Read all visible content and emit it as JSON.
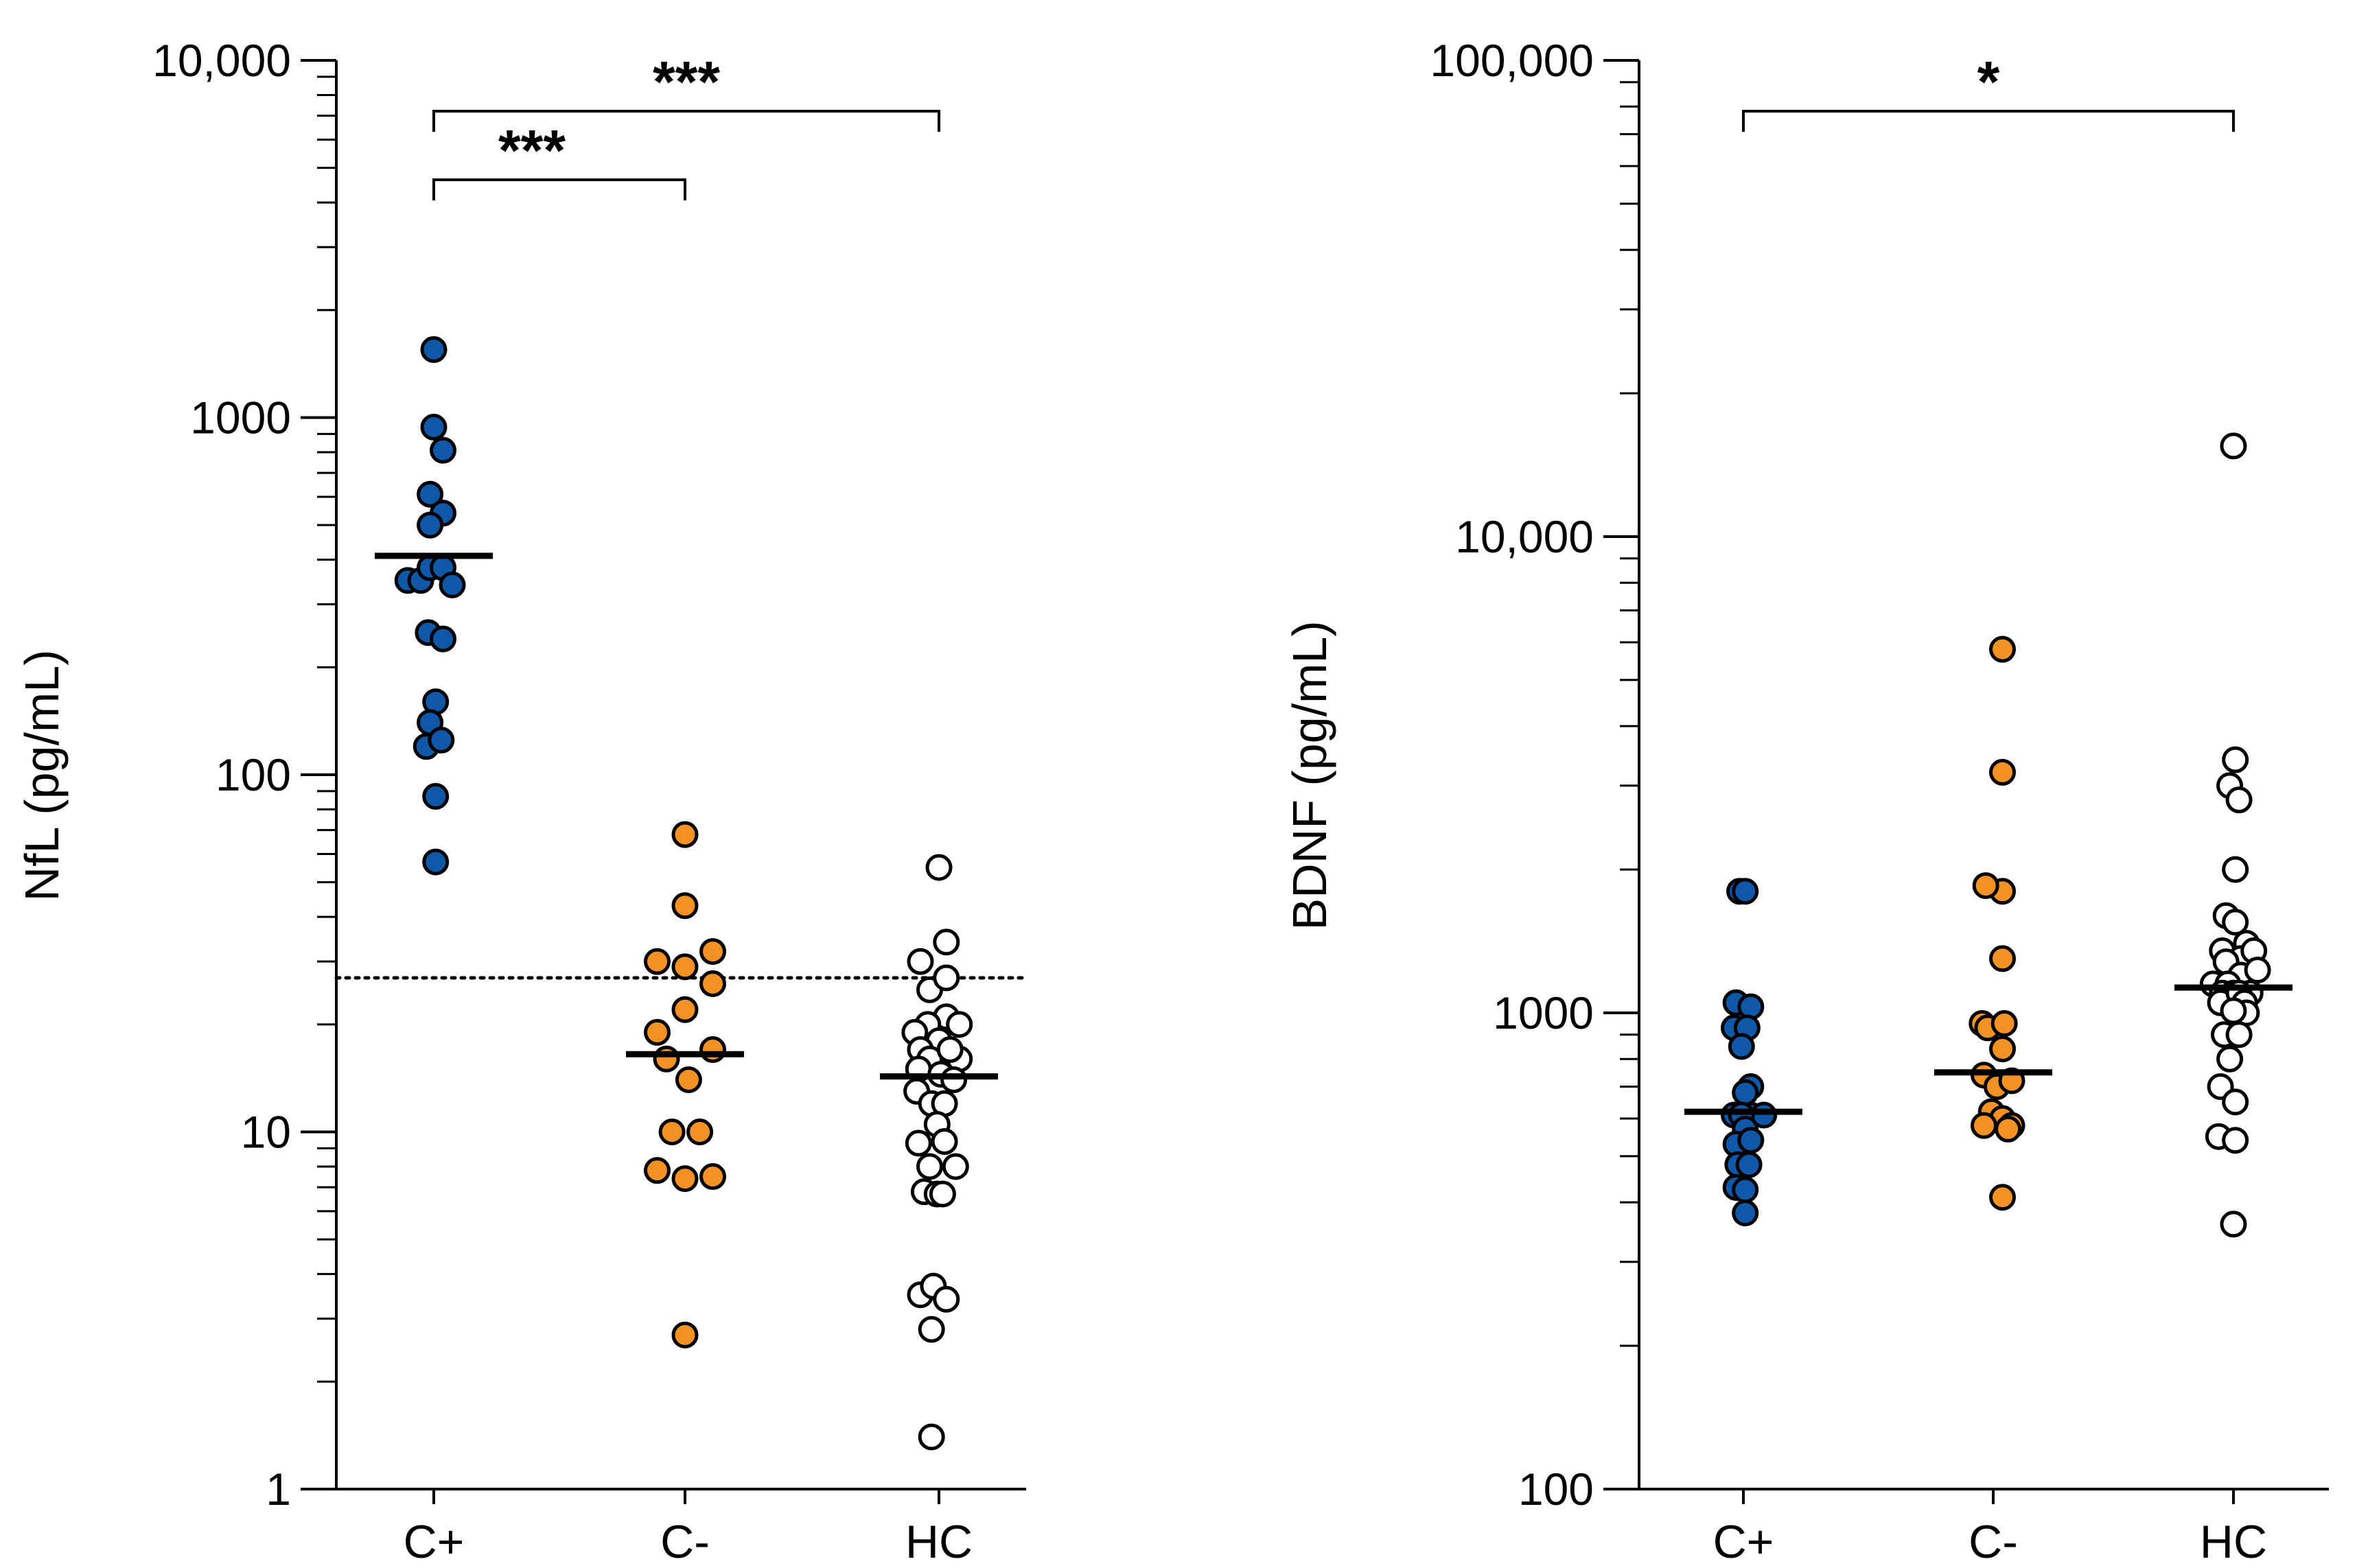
{
  "chart_data": [
    {
      "type": "scatter",
      "scale": "log",
      "ylabel": "NfL (pg/mL)",
      "ylim": [
        1,
        10000
      ],
      "yticks": [
        {
          "value": 1,
          "label": "1"
        },
        {
          "value": 10,
          "label": "10"
        },
        {
          "value": 100,
          "label": "100"
        },
        {
          "value": 1000,
          "label": "1000"
        },
        {
          "value": 10000,
          "label": "10,000"
        }
      ],
      "categories": [
        "C+",
        "C-",
        "HC"
      ],
      "reference_line": {
        "value": 27,
        "style": "dotted"
      },
      "series": [
        {
          "name": "C+",
          "color": "#0F58A8",
          "points": [
            [
              0,
              1550
            ],
            [
              0,
              940
            ],
            [
              0.05,
              810
            ],
            [
              -0.02,
              610
            ],
            [
              0.05,
              540
            ],
            [
              -0.02,
              500
            ],
            [
              -0.14,
              350
            ],
            [
              -0.07,
              350
            ],
            [
              -0.02,
              380
            ],
            [
              0.05,
              380
            ],
            [
              0.1,
              340
            ],
            [
              -0.03,
              250
            ],
            [
              0.05,
              240
            ],
            [
              0.01,
              160
            ],
            [
              -0.02,
              140
            ],
            [
              -0.04,
              120
            ],
            [
              0.04,
              125
            ],
            [
              0.01,
              87
            ],
            [
              0.01,
              57
            ]
          ],
          "median": 410
        },
        {
          "name": "C-",
          "color": "#F39224",
          "points": [
            [
              0,
              68
            ],
            [
              0,
              43
            ],
            [
              -0.15,
              30
            ],
            [
              0,
              29
            ],
            [
              0.15,
              32
            ],
            [
              0,
              22
            ],
            [
              0.15,
              26
            ],
            [
              -0.15,
              19
            ],
            [
              -0.1,
              16
            ],
            [
              0.02,
              14
            ],
            [
              0.15,
              17
            ],
            [
              -0.07,
              10
            ],
            [
              0.08,
              10
            ],
            [
              -0.15,
              7.8
            ],
            [
              0,
              7.4
            ],
            [
              0.15,
              7.5
            ],
            [
              0,
              2.7
            ]
          ],
          "median": 16.5
        },
        {
          "name": "HC",
          "color": "#FFFFFF",
          "points": [
            [
              0,
              55
            ],
            [
              0.04,
              34
            ],
            [
              -0.1,
              30
            ],
            [
              -0.05,
              25
            ],
            [
              0.04,
              27
            ],
            [
              0.04,
              21
            ],
            [
              -0.06,
              20
            ],
            [
              0.11,
              20
            ],
            [
              -0.13,
              19
            ],
            [
              0,
              18
            ],
            [
              0.11,
              16
            ],
            [
              -0.1,
              17
            ],
            [
              -0.05,
              16
            ],
            [
              0.06,
              17
            ],
            [
              -0.11,
              15
            ],
            [
              0.01,
              14.5
            ],
            [
              0.08,
              14
            ],
            [
              -0.12,
              13
            ],
            [
              -0.04,
              12
            ],
            [
              0.03,
              12
            ],
            [
              -0.01,
              10.5
            ],
            [
              -0.11,
              9.3
            ],
            [
              0.03,
              9.4
            ],
            [
              -0.05,
              8
            ],
            [
              0.09,
              8
            ],
            [
              -0.08,
              6.8
            ],
            [
              -0.01,
              6.7
            ],
            [
              0.02,
              6.7
            ],
            [
              -0.1,
              3.5
            ],
            [
              -0.03,
              3.7
            ],
            [
              0.04,
              3.4
            ],
            [
              -0.04,
              2.8
            ],
            [
              -0.04,
              1.4
            ]
          ],
          "median": 14.3
        }
      ],
      "significance": [
        {
          "from": 0,
          "to": 2,
          "label": "***",
          "level": "upper"
        },
        {
          "from": 0,
          "to": 1,
          "label": "***",
          "level": "lower"
        }
      ]
    },
    {
      "type": "scatter",
      "scale": "log",
      "ylabel": "BDNF (pg/mL)",
      "ylim": [
        100,
        100000
      ],
      "yticks": [
        {
          "value": 100,
          "label": "100"
        },
        {
          "value": 1000,
          "label": "1000"
        },
        {
          "value": 10000,
          "label": "10,000"
        },
        {
          "value": 100000,
          "label": "100,000"
        }
      ],
      "categories": [
        "C+",
        "C-",
        "HC"
      ],
      "series": [
        {
          "name": "C+",
          "color": "#0F58A8",
          "points": [
            [
              -0.02,
              1800
            ],
            [
              0.01,
              1800
            ],
            [
              -0.04,
              1050
            ],
            [
              0.04,
              1030
            ],
            [
              -0.05,
              930
            ],
            [
              0.02,
              930
            ],
            [
              -0.01,
              850
            ],
            [
              0.04,
              700
            ],
            [
              0.01,
              680
            ],
            [
              -0.05,
              610
            ],
            [
              0.04,
              610
            ],
            [
              0.11,
              610
            ],
            [
              -0.01,
              610
            ],
            [
              0.01,
              570
            ],
            [
              -0.04,
              530
            ],
            [
              0.04,
              540
            ],
            [
              -0.03,
              480
            ],
            [
              0.03,
              480
            ],
            [
              -0.04,
              430
            ],
            [
              0.01,
              425
            ],
            [
              0.01,
              380
            ]
          ],
          "median": 620
        },
        {
          "name": "C-",
          "color": "#F39224",
          "points": [
            [
              0.05,
              5800
            ],
            [
              0.05,
              3200
            ],
            [
              0.05,
              1800
            ],
            [
              -0.04,
              1850
            ],
            [
              0.05,
              1300
            ],
            [
              -0.06,
              950
            ],
            [
              -0.03,
              930
            ],
            [
              0.06,
              950
            ],
            [
              0.05,
              840
            ],
            [
              -0.05,
              740
            ],
            [
              0.02,
              700
            ],
            [
              0.1,
              720
            ],
            [
              -0.01,
              620
            ],
            [
              0.05,
              600
            ],
            [
              0.1,
              580
            ],
            [
              -0.05,
              580
            ],
            [
              0.08,
              570
            ],
            [
              0.05,
              410
            ]
          ],
          "median": 750
        },
        {
          "name": "HC",
          "color": "#FFFFFF",
          "points": [
            [
              0,
              15500
            ],
            [
              0.01,
              3400
            ],
            [
              -0.02,
              3000
            ],
            [
              0.03,
              2800
            ],
            [
              0.01,
              2000
            ],
            [
              -0.04,
              1600
            ],
            [
              0.01,
              1550
            ],
            [
              0.07,
              1400
            ],
            [
              -0.06,
              1350
            ],
            [
              0.04,
              1300
            ],
            [
              -0.04,
              1280
            ],
            [
              0.11,
              1350
            ],
            [
              -0.11,
              1150
            ],
            [
              0.04,
              1200
            ],
            [
              -0.03,
              1150
            ],
            [
              0.13,
              1230
            ],
            [
              -0.06,
              1100
            ],
            [
              0.09,
              1100
            ],
            [
              0,
              1100
            ],
            [
              -0.04,
              1050
            ],
            [
              -0.07,
              1050
            ],
            [
              0.03,
              1100
            ],
            [
              0.06,
              1050
            ],
            [
              0.07,
              1000
            ],
            [
              0,
              1010
            ],
            [
              -0.05,
              900
            ],
            [
              0.03,
              900
            ],
            [
              -0.02,
              800
            ],
            [
              -0.07,
              700
            ],
            [
              0.01,
              650
            ],
            [
              -0.08,
              550
            ],
            [
              0.01,
              540
            ],
            [
              0,
              360
            ]
          ],
          "median": 1130
        }
      ],
      "significance": [
        {
          "from": 0,
          "to": 2,
          "label": "*",
          "level": "upper"
        }
      ]
    }
  ]
}
